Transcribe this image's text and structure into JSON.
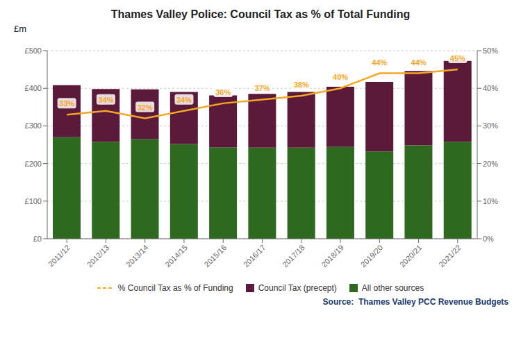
{
  "chart_data": {
    "type": "bar",
    "title": "Thames Valley Police: Council Tax as % of Total Funding",
    "ylabel": "£m",
    "annotations": [
      "Source:  Thames Valley PCC Revenue Budgets"
    ],
    "categories": [
      "2011/12",
      "2012/13",
      "2013/14",
      "2014/15",
      "2015/16",
      "2016/17",
      "2017/18",
      "2018/19",
      "2019/20",
      "2020/21",
      "2021/22"
    ],
    "stacked": true,
    "grid": true,
    "legend": "bottom",
    "series": [
      {
        "name": "All other sources",
        "type": "bar",
        "color": "#2d6a1f",
        "values": [
          270,
          258,
          265,
          252,
          243,
          242,
          242,
          244,
          232,
          248,
          258
        ]
      },
      {
        "name": "Council Tax (precept)",
        "type": "bar",
        "color": "#5c1a3a",
        "values": [
          138,
          140,
          132,
          138,
          138,
          143,
          148,
          160,
          185,
          198,
          215
        ]
      },
      {
        "name": "% Council Tax as % of Funding",
        "type": "line",
        "axis": "y2",
        "color": "#f5a623",
        "data_labels": true,
        "values": [
          33,
          34,
          32,
          34,
          36,
          37,
          38,
          40,
          44,
          44,
          45
        ],
        "value_labels": [
          "33%",
          "34%",
          "32%",
          "34%",
          "36%",
          "37%",
          "38%",
          "40%",
          "44%",
          "44%",
          "45%"
        ]
      }
    ],
    "ylim": [
      0,
      500
    ],
    "yticks": [
      {
        "value": 0,
        "label": "£0"
      },
      {
        "value": 100,
        "label": "£100"
      },
      {
        "value": 200,
        "label": "£200"
      },
      {
        "value": 300,
        "label": "£300"
      },
      {
        "value": 400,
        "label": "£400"
      },
      {
        "value": 500,
        "label": "£500"
      }
    ],
    "y2lim": [
      0,
      50
    ],
    "y2ticks": [
      {
        "value": 0,
        "label": "0%"
      },
      {
        "value": 10,
        "label": "10%"
      },
      {
        "value": 20,
        "label": "20%"
      },
      {
        "value": 30,
        "label": "30%"
      },
      {
        "value": 40,
        "label": "40%"
      },
      {
        "value": 50,
        "label": "50%"
      }
    ]
  }
}
